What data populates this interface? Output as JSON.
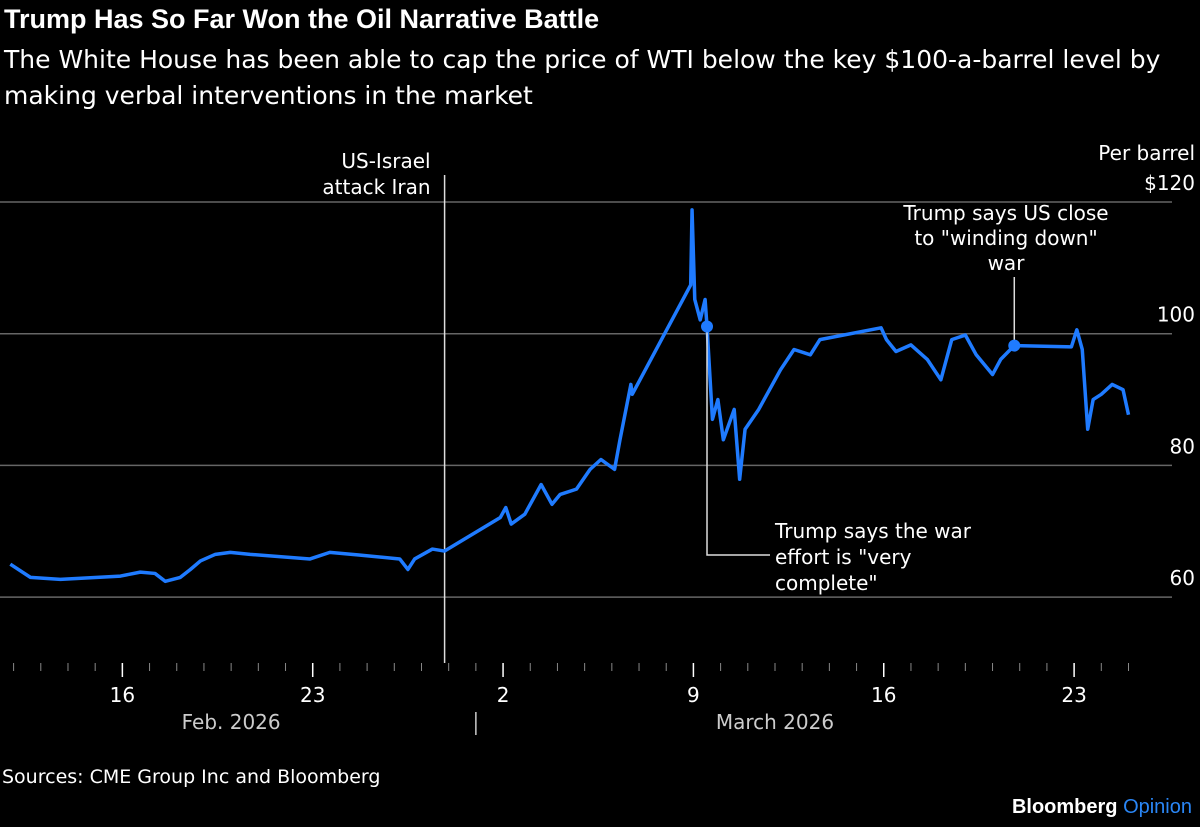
{
  "title": "Trump Has So Far Won the Oil Narrative Battle",
  "subtitle": "The White House has been able to cap the price of WTI below the key $100-a-barrel level by making verbal interventions in the market",
  "source": "Sources: CME Group Inc and Bloomberg",
  "brand": {
    "name": "Bloomberg",
    "section": "Opinion"
  },
  "colors": {
    "line": "#1f7bff",
    "grid": "#666666",
    "brand_accent": "#2a86f5"
  },
  "chart_data": {
    "type": "line",
    "x_unit": "days since Feb 1, 2026",
    "xlim": [
      10.5,
      53.6
    ],
    "ylim": [
      50,
      120
    ],
    "ylabel": "Per barrel",
    "y_ticks": [
      60,
      80,
      100,
      120
    ],
    "y_tick_labels": [
      "60",
      "80",
      "100",
      "$120"
    ],
    "x_ticks": [
      15,
      22,
      29,
      36,
      43,
      50
    ],
    "x_tick_labels": [
      "16",
      "23",
      "2",
      "9",
      "16",
      "23"
    ],
    "month_labels": [
      {
        "label": "Feb. 2026",
        "x": 19
      },
      {
        "label": "March 2026",
        "x": 39
      }
    ],
    "month_separator": 28,
    "grid": true,
    "series": [
      {
        "name": "WTI",
        "x": [
          10.88,
          11.62,
          12.72,
          14.93,
          15.66,
          16.2,
          16.58,
          17.13,
          17.5,
          17.87,
          18.42,
          18.97,
          19.7,
          21.9,
          22.63,
          23.7,
          25.2,
          25.5,
          25.75,
          26.4,
          26.85,
          28.9,
          29.1,
          29.3,
          29.8,
          30.4,
          30.8,
          31.1,
          31.7,
          32.2,
          32.6,
          33.1,
          33.3,
          33.7,
          33.75,
          35.9,
          35.95,
          36.05,
          36.25,
          36.43,
          36.5,
          36.7,
          36.9,
          37.1,
          37.5,
          37.7,
          37.9,
          38.4,
          38.8,
          39.2,
          39.7,
          40.3,
          40.65,
          42.9,
          43.1,
          43.45,
          44.0,
          44.6,
          45.1,
          45.5,
          46.0,
          46.4,
          47.0,
          47.3,
          47.8,
          49.9,
          50.1,
          50.3,
          50.5,
          50.7,
          51.0,
          51.4,
          51.8,
          52.0
        ],
        "y": [
          65.0,
          63.0,
          62.7,
          63.2,
          63.8,
          63.6,
          62.4,
          63.0,
          64.2,
          65.5,
          66.5,
          66.8,
          66.5,
          65.8,
          66.8,
          66.4,
          65.8,
          64.2,
          65.8,
          67.3,
          67.0,
          72.1,
          73.6,
          71.1,
          72.6,
          77.1,
          74.1,
          75.6,
          76.4,
          79.4,
          80.9,
          79.4,
          83.9,
          92.3,
          90.8,
          107.4,
          118.8,
          105.2,
          102.1,
          105.2,
          101.1,
          87.0,
          90.0,
          83.9,
          88.5,
          77.9,
          85.5,
          88.5,
          91.5,
          94.5,
          97.6,
          96.8,
          99.1,
          100.9,
          99.1,
          97.3,
          98.3,
          96.1,
          93.0,
          99.1,
          99.8,
          96.8,
          93.8,
          96.1,
          98.2,
          98.0,
          100.6,
          97.6,
          85.5,
          90.0,
          90.8,
          92.3,
          91.5,
          87.7
        ]
      }
    ],
    "annotations": [
      {
        "text": [
          "US-Israel",
          "attack Iran"
        ],
        "x": 26.85
      },
      {
        "text": [
          "Trump says the war",
          "effort is \"very",
          "complete\""
        ],
        "x": 36.5,
        "y": 101.1
      },
      {
        "text": [
          "Trump says US close",
          "to \"winding down\"",
          "war"
        ],
        "x": 47.8,
        "y": 98.2
      }
    ]
  }
}
